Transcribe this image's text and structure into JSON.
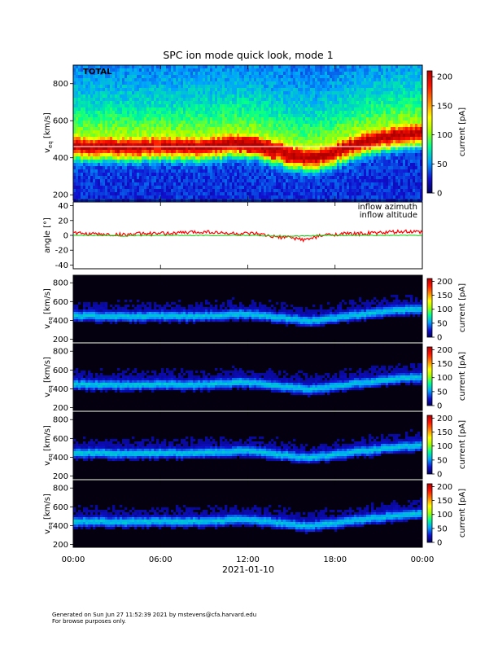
{
  "title": "SPC ion mode quick look, mode 1",
  "footer": {
    "line1": "Generated on Sun Jun 27 11:52:39 2021 by mstevens@cfa.harvard.edu",
    "line2": "For browse purposes only."
  },
  "chart_data": [
    {
      "type": "heatmap",
      "panel_label": "TOTAL",
      "ylabel": "v_eq [km/s]",
      "ylim": [
        170,
        900
      ],
      "yticks": [
        200,
        400,
        600,
        800
      ],
      "colorbar": {
        "label": "current [pA]",
        "range": [
          0,
          210
        ],
        "ticks": [
          0,
          50,
          100,
          150,
          200
        ]
      },
      "ridge_velocity_km_s": [
        470,
        470,
        470,
        460,
        465,
        470,
        470,
        470,
        470,
        480,
        485,
        480,
        450,
        430,
        405,
        420,
        450,
        480,
        500,
        520,
        535,
        545
      ],
      "peak_current_band_km_s": [
        440,
        490
      ]
    },
    {
      "type": "line",
      "ylabel": "angle [°]",
      "ylim": [
        -45,
        45
      ],
      "yticks": [
        -40,
        -20,
        0,
        20,
        40
      ],
      "series": [
        {
          "name": "inflow azimuth",
          "color": "#ff0000",
          "values": [
            3,
            2,
            1,
            1,
            2,
            2,
            3,
            4,
            5,
            3,
            2,
            2,
            -2,
            -3,
            -6,
            0,
            2,
            2,
            3,
            4,
            5,
            4
          ]
        },
        {
          "name": "inflow altitude",
          "color": "#00cc00",
          "values": [
            0,
            0,
            0,
            -1,
            0,
            0,
            0,
            0,
            0,
            0,
            0,
            0,
            -1,
            -1,
            -1,
            0,
            0,
            0,
            0,
            0,
            0,
            0
          ]
        }
      ]
    },
    {
      "type": "heatmap",
      "ylabel": "v_eq [km/s]",
      "ylim": [
        170,
        880
      ],
      "yticks": [
        200,
        400,
        600,
        800
      ],
      "colorbar": {
        "label": "current [pA]",
        "range": [
          0,
          210
        ],
        "ticks": [
          0,
          50,
          100,
          150,
          200
        ]
      },
      "ridge_velocity_km_s": [
        460,
        460,
        455,
        450,
        455,
        460,
        460,
        455,
        460,
        470,
        480,
        475,
        450,
        430,
        410,
        420,
        445,
        470,
        490,
        510,
        525,
        540
      ]
    },
    {
      "type": "heatmap",
      "ylabel": "v_eq [km/s]",
      "ylim": [
        170,
        880
      ],
      "yticks": [
        200,
        400,
        600,
        800
      ],
      "colorbar": {
        "label": "current [pA]",
        "range": [
          0,
          210
        ],
        "ticks": [
          0,
          50,
          100,
          150,
          200
        ]
      },
      "ridge_velocity_km_s": [
        460,
        460,
        455,
        450,
        455,
        460,
        460,
        455,
        460,
        470,
        480,
        475,
        450,
        430,
        410,
        420,
        445,
        470,
        490,
        510,
        525,
        540
      ]
    },
    {
      "type": "heatmap",
      "ylabel": "v_eq [km/s]",
      "ylim": [
        170,
        880
      ],
      "yticks": [
        200,
        400,
        600,
        800
      ],
      "colorbar": {
        "label": "current [pA]",
        "range": [
          0,
          210
        ],
        "ticks": [
          0,
          50,
          100,
          150,
          200
        ]
      },
      "ridge_velocity_km_s": [
        460,
        460,
        455,
        450,
        455,
        460,
        460,
        455,
        460,
        470,
        480,
        475,
        450,
        430,
        410,
        420,
        445,
        470,
        490,
        510,
        525,
        540
      ]
    },
    {
      "type": "heatmap",
      "ylabel": "v_eq [km/s]",
      "ylim": [
        170,
        880
      ],
      "yticks": [
        200,
        400,
        600,
        800
      ],
      "colorbar": {
        "label": "current [pA]",
        "range": [
          0,
          210
        ],
        "ticks": [
          0,
          50,
          100,
          150,
          200
        ]
      },
      "ridge_velocity_km_s": [
        460,
        460,
        455,
        450,
        455,
        460,
        460,
        455,
        460,
        470,
        480,
        475,
        450,
        430,
        410,
        420,
        445,
        470,
        490,
        510,
        525,
        540
      ]
    }
  ],
  "x_axis": {
    "range_hours": [
      0,
      24
    ],
    "tick_hours": [
      0,
      6,
      12,
      18,
      24
    ],
    "tick_labels": [
      "00:00",
      "06:00",
      "12:00",
      "18:00",
      "00:00"
    ],
    "date": "2021-01-10"
  }
}
